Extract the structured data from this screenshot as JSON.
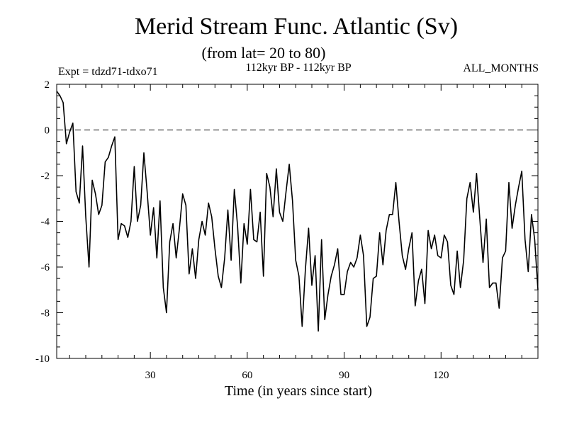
{
  "chart_data": {
    "type": "line",
    "title": "Merid Stream Func. Atlantic (Sv)",
    "subtitle": "(from lat= 20 to 80)",
    "left_note": "Expt = tdzd71-tdxo71",
    "center_note": "112kyr BP - 112kyr BP",
    "right_note": "ALL_MONTHS",
    "xlabel": "Time (in years since start)",
    "ylabel": "",
    "xlim": [
      1,
      150
    ],
    "ylim": [
      -10,
      2
    ],
    "xticks": [
      30,
      60,
      90,
      120
    ],
    "yticks": [
      -10,
      -8,
      -6,
      -4,
      -2,
      0,
      2
    ],
    "reference_line": {
      "y": 0,
      "style": "dashed"
    },
    "series": [
      {
        "name": "Merid Stream Func. Atlantic",
        "x": [
          1,
          2,
          3,
          4,
          5,
          6,
          7,
          8,
          9,
          10,
          11,
          12,
          13,
          14,
          15,
          16,
          17,
          18,
          19,
          20,
          21,
          22,
          23,
          24,
          25,
          26,
          27,
          28,
          29,
          30,
          31,
          32,
          33,
          34,
          35,
          36,
          37,
          38,
          39,
          40,
          41,
          42,
          43,
          44,
          45,
          46,
          47,
          48,
          49,
          50,
          51,
          52,
          53,
          54,
          55,
          56,
          57,
          58,
          59,
          60,
          61,
          62,
          63,
          64,
          65,
          66,
          67,
          68,
          69,
          70,
          71,
          72,
          73,
          74,
          75,
          76,
          77,
          78,
          79,
          80,
          81,
          82,
          83,
          84,
          85,
          86,
          87,
          88,
          89,
          90,
          91,
          92,
          93,
          94,
          95,
          96,
          97,
          98,
          99,
          100,
          101,
          102,
          103,
          104,
          105,
          106,
          107,
          108,
          109,
          110,
          111,
          112,
          113,
          114,
          115,
          116,
          117,
          118,
          119,
          120,
          121,
          122,
          123,
          124,
          125,
          126,
          127,
          128,
          129,
          130,
          131,
          132,
          133,
          134,
          135,
          136,
          137,
          138,
          139,
          140,
          141,
          142,
          143,
          144,
          145,
          146,
          147,
          148,
          149,
          150
        ],
        "values": [
          1.7,
          1.5,
          1.2,
          -0.6,
          -0.1,
          0.3,
          -2.7,
          -3.2,
          -0.7,
          -3.8,
          -6.0,
          -2.2,
          -2.8,
          -3.7,
          -3.3,
          -1.4,
          -1.2,
          -0.7,
          -0.3,
          -4.8,
          -4.1,
          -4.2,
          -4.7,
          -4.0,
          -1.6,
          -4.0,
          -3.3,
          -1.0,
          -2.7,
          -4.6,
          -3.4,
          -5.6,
          -3.1,
          -6.9,
          -8.0,
          -4.9,
          -4.1,
          -5.6,
          -4.3,
          -2.8,
          -3.3,
          -6.3,
          -5.2,
          -6.5,
          -4.8,
          -4.0,
          -4.6,
          -3.2,
          -3.8,
          -5.2,
          -6.4,
          -6.9,
          -5.6,
          -3.5,
          -5.7,
          -2.6,
          -4.2,
          -6.7,
          -4.1,
          -5.0,
          -2.6,
          -4.8,
          -4.9,
          -3.6,
          -6.4,
          -1.9,
          -2.5,
          -3.8,
          -1.7,
          -3.6,
          -4.0,
          -2.7,
          -1.5,
          -3.1,
          -5.7,
          -6.4,
          -8.6,
          -6.1,
          -4.3,
          -6.8,
          -5.5,
          -8.8,
          -4.8,
          -8.3,
          -7.2,
          -6.4,
          -5.9,
          -5.2,
          -7.2,
          -7.2,
          -6.2,
          -5.8,
          -6.0,
          -5.6,
          -4.6,
          -5.5,
          -8.6,
          -8.2,
          -6.5,
          -6.4,
          -4.5,
          -5.9,
          -4.4,
          -3.7,
          -3.7,
          -2.3,
          -4.0,
          -5.5,
          -6.1,
          -5.2,
          -4.5,
          -7.7,
          -6.6,
          -6.1,
          -7.6,
          -4.4,
          -5.2,
          -4.6,
          -5.5,
          -5.6,
          -4.6,
          -4.9,
          -6.8,
          -7.2,
          -5.3,
          -6.9,
          -5.7,
          -3.0,
          -2.3,
          -3.6,
          -1.9,
          -3.9,
          -5.8,
          -3.9,
          -6.9,
          -6.7,
          -6.7,
          -7.8,
          -5.6,
          -5.3,
          -2.3,
          -4.3,
          -3.3,
          -2.5,
          -1.8,
          -4.8,
          -6.2,
          -3.7,
          -4.8,
          -7.0
        ]
      }
    ]
  }
}
